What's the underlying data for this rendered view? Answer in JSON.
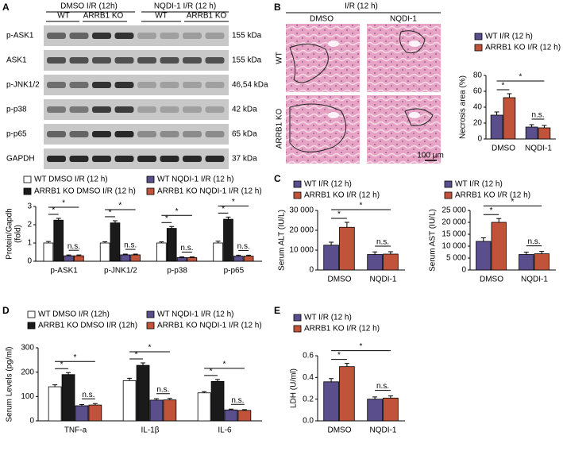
{
  "panels": [
    "A",
    "B",
    "C",
    "D",
    "E"
  ],
  "blot": {
    "groups": [
      "DMSO I/R (12h)",
      "NQDI-1 I/R (12 h)"
    ],
    "genotypes": [
      "WT",
      "ARRB1 KO",
      "WT",
      "ARRB1 KO"
    ],
    "rows": [
      {
        "label": "p-ASK1",
        "size": "155 kDa"
      },
      {
        "label": "ASK1",
        "size": "155 kDa"
      },
      {
        "label": "p-JNK1/2",
        "size": "46,54 kDa"
      },
      {
        "label": "p-p38",
        "size": "42 kDa"
      },
      {
        "label": "p-p65",
        "size": "65 kDa"
      },
      {
        "label": "GAPDH",
        "size": "37 kDa"
      }
    ]
  },
  "histology": {
    "title": "I/R (12 h)",
    "columns": [
      "DMSO",
      "NQDI-1"
    ],
    "rows": [
      "WT",
      "ARRB1 KO"
    ],
    "scale_bar": "100 μm"
  },
  "chart_data": [
    {
      "type": "bar",
      "ylabel": [
        "Protein/Gapdh",
        "(fold)"
      ],
      "categories": [
        "p-ASK1",
        "p-JNK1/2",
        "p-p38",
        "p-p65"
      ],
      "ylim": [
        0,
        3
      ],
      "yticks": [
        0,
        1,
        2,
        3
      ],
      "series": [
        {
          "name": "WT DMSO I/R (12 h)",
          "color": "#ffffff",
          "values": [
            1.0,
            1.0,
            1.0,
            1.0
          ],
          "errors": [
            0.08,
            0.07,
            0.06,
            0.1
          ]
        },
        {
          "name": "ARRB1 KO DMSO I/R (12 h)",
          "color": "#1a1a1a",
          "values": [
            2.25,
            2.1,
            1.8,
            2.3
          ],
          "errors": [
            0.1,
            0.12,
            0.1,
            0.12
          ]
        },
        {
          "name": "WT NQDI-1 I/R (12 h)",
          "color": "#5a4f8c",
          "values": [
            0.3,
            0.35,
            0.2,
            0.28
          ],
          "errors": [
            0.04,
            0.04,
            0.04,
            0.05
          ]
        },
        {
          "name": "ARRB1 KO NQDI-1 I/R (12 h)",
          "color": "#c0533a",
          "values": [
            0.3,
            0.35,
            0.2,
            0.28
          ],
          "errors": [
            0.04,
            0.04,
            0.04,
            0.05
          ]
        }
      ],
      "significance": [
        [
          "*",
          "*",
          "n.s."
        ],
        [
          "*",
          "*",
          "n.s."
        ],
        [
          "*",
          "*",
          "n.s."
        ],
        [
          "*",
          "*",
          "n.s."
        ]
      ]
    },
    {
      "type": "bar",
      "ylabel": "Necrosis area (%)",
      "categories": [
        "DMSO",
        "NQDI-1"
      ],
      "ylim": [
        0,
        80
      ],
      "yticks": [
        0,
        20,
        40,
        60,
        80
      ],
      "series": [
        {
          "name": "WT I/R (12 h)",
          "color": "#5a4f8c",
          "values": [
            30,
            15
          ],
          "errors": [
            4,
            3
          ]
        },
        {
          "name": "ARRB1 KO I/R (12 h)",
          "color": "#c0533a",
          "values": [
            52,
            14
          ],
          "errors": [
            5,
            3
          ]
        }
      ],
      "significance": [
        "*",
        "*",
        "n.s."
      ]
    },
    {
      "type": "bar",
      "ylabel": "Serum ALT (IU/L)",
      "categories": [
        "DMSO",
        "NQDI-1"
      ],
      "ylim": [
        0,
        30000
      ],
      "yticks": [
        0,
        {
          "value": 10000,
          "label": "10 000"
        },
        {
          "value": 20000,
          "label": "20 000"
        },
        {
          "value": 30000,
          "label": "30 000"
        }
      ],
      "series": [
        {
          "name": "WT I/R (12 h)",
          "color": "#5a4f8c",
          "values": [
            12500,
            7800
          ],
          "errors": [
            1500,
            1300
          ]
        },
        {
          "name": "ARRB1 KO I/R (12 h)",
          "color": "#c0533a",
          "values": [
            21500,
            8000
          ],
          "errors": [
            2500,
            1200
          ]
        }
      ],
      "significance": [
        "*",
        "*",
        "n.s."
      ]
    },
    {
      "type": "bar",
      "ylabel": "Serum AST (IU/L)",
      "categories": [
        "DMSO",
        "NQDI-1"
      ],
      "ylim": [
        0,
        25000
      ],
      "yticks": [
        0,
        {
          "value": 5000,
          "label": "5 000"
        },
        {
          "value": 10000,
          "label": "10 000"
        },
        {
          "value": 15000,
          "label": "15 000"
        },
        {
          "value": 20000,
          "label": "20 000"
        },
        {
          "value": 25000,
          "label": "25 000"
        }
      ],
      "series": [
        {
          "name": "WT I/R (12 h)",
          "color": "#5a4f8c",
          "values": [
            12000,
            6500
          ],
          "errors": [
            1500,
            1000
          ]
        },
        {
          "name": "ARRB1 KO I/R (12 h)",
          "color": "#c0533a",
          "values": [
            20000,
            6800
          ],
          "errors": [
            1600,
            1000
          ]
        }
      ],
      "significance": [
        "*",
        "*",
        "n.s."
      ]
    },
    {
      "type": "bar",
      "ylabel": "Serum Levels (pg/ml)",
      "categories": [
        "TNF-a",
        "IL-1β",
        "IL-6"
      ],
      "ylim": [
        0,
        300
      ],
      "yticks": [
        0,
        100,
        200,
        300
      ],
      "series": [
        {
          "name": "WT DMSO I/R (12h)",
          "color": "#ffffff",
          "values": [
            140,
            165,
            115
          ],
          "errors": [
            8,
            10,
            5
          ]
        },
        {
          "name": "ARRB1 KO DMSO I/R (12h)",
          "color": "#1a1a1a",
          "values": [
            190,
            228,
            162
          ],
          "errors": [
            8,
            10,
            8
          ]
        },
        {
          "name": "WT NQDI-1 I/R (12 h)",
          "color": "#5a4f8c",
          "values": [
            62,
            85,
            45
          ],
          "errors": [
            5,
            6,
            3
          ]
        },
        {
          "name": "ARRB1 KO NQDI-1 I/R (12 h)",
          "color": "#c0533a",
          "values": [
            65,
            86,
            43
          ],
          "errors": [
            6,
            6,
            3
          ]
        }
      ],
      "significance": [
        [
          "*",
          "*",
          "n.s."
        ],
        [
          "*",
          "*",
          "n.s."
        ],
        [
          "*",
          "*",
          "n.s."
        ]
      ]
    },
    {
      "type": "bar",
      "ylabel": "LDH (U/ml)",
      "categories": [
        "DMSO",
        "NQDI-1"
      ],
      "ylim": [
        0,
        0.6
      ],
      "yticks": [
        {
          "value": 0,
          "label": "0.0"
        },
        0.2,
        0.4,
        0.6
      ],
      "series": [
        {
          "name": "WT I/R (12 h)",
          "color": "#5a4f8c",
          "values": [
            0.36,
            0.2
          ],
          "errors": [
            0.03,
            0.02
          ]
        },
        {
          "name": "ARRB1 KO I/R (12 h)",
          "color": "#c0533a",
          "values": [
            0.5,
            0.21
          ],
          "errors": [
            0.03,
            0.02
          ]
        }
      ],
      "significance": [
        "*",
        "*",
        "n.s."
      ]
    }
  ]
}
